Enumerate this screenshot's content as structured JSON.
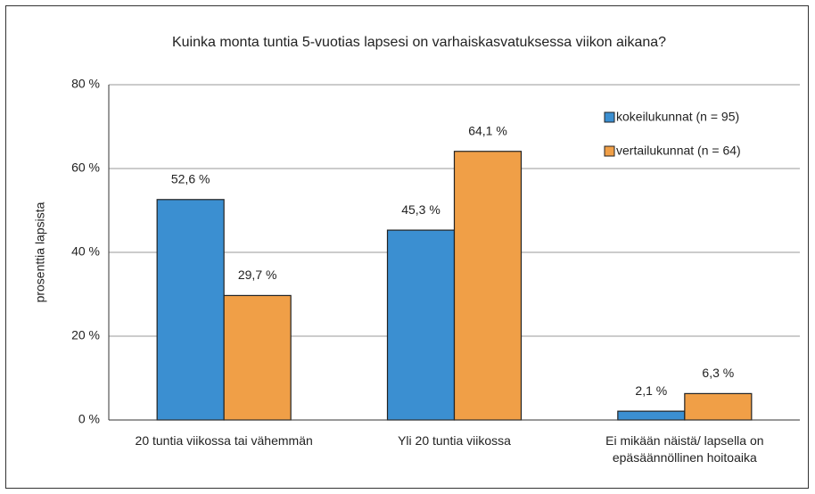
{
  "chart_data": {
    "type": "bar",
    "title": "Kuinka monta tuntia 5-vuotias lapsesi on varhaiskasvatuksessa viikon aikana?",
    "y_label": "prosenttia lapsista",
    "categories": [
      "20 tuntia viikossa tai vähemmän",
      "Yli 20 tuntia viikossa",
      "Ei mikään näistä/ lapsella on epäsäännöllinen hoitoaika"
    ],
    "series": [
      {
        "name": "kokeilukunnat (n = 95)",
        "color": "#3b8fd1",
        "values": [
          52.6,
          45.3,
          2.1
        ],
        "value_labels": [
          "52,6 %",
          "45,3 %",
          "2,1 %"
        ]
      },
      {
        "name": "vertailukunnat (n = 64)",
        "color": "#f09f47",
        "values": [
          29.7,
          64.1,
          6.3
        ],
        "value_labels": [
          "29,7 %",
          "64,1 %",
          "6,3 %"
        ]
      }
    ],
    "ylim": [
      0,
      80
    ],
    "yticks": [
      {
        "value": 0,
        "label": "0 %"
      },
      {
        "value": 20,
        "label": "20 %"
      },
      {
        "value": 40,
        "label": "40 %"
      },
      {
        "value": 60,
        "label": "60 %"
      },
      {
        "value": 80,
        "label": "80 %"
      }
    ],
    "grid": true,
    "legend": "upper right"
  }
}
